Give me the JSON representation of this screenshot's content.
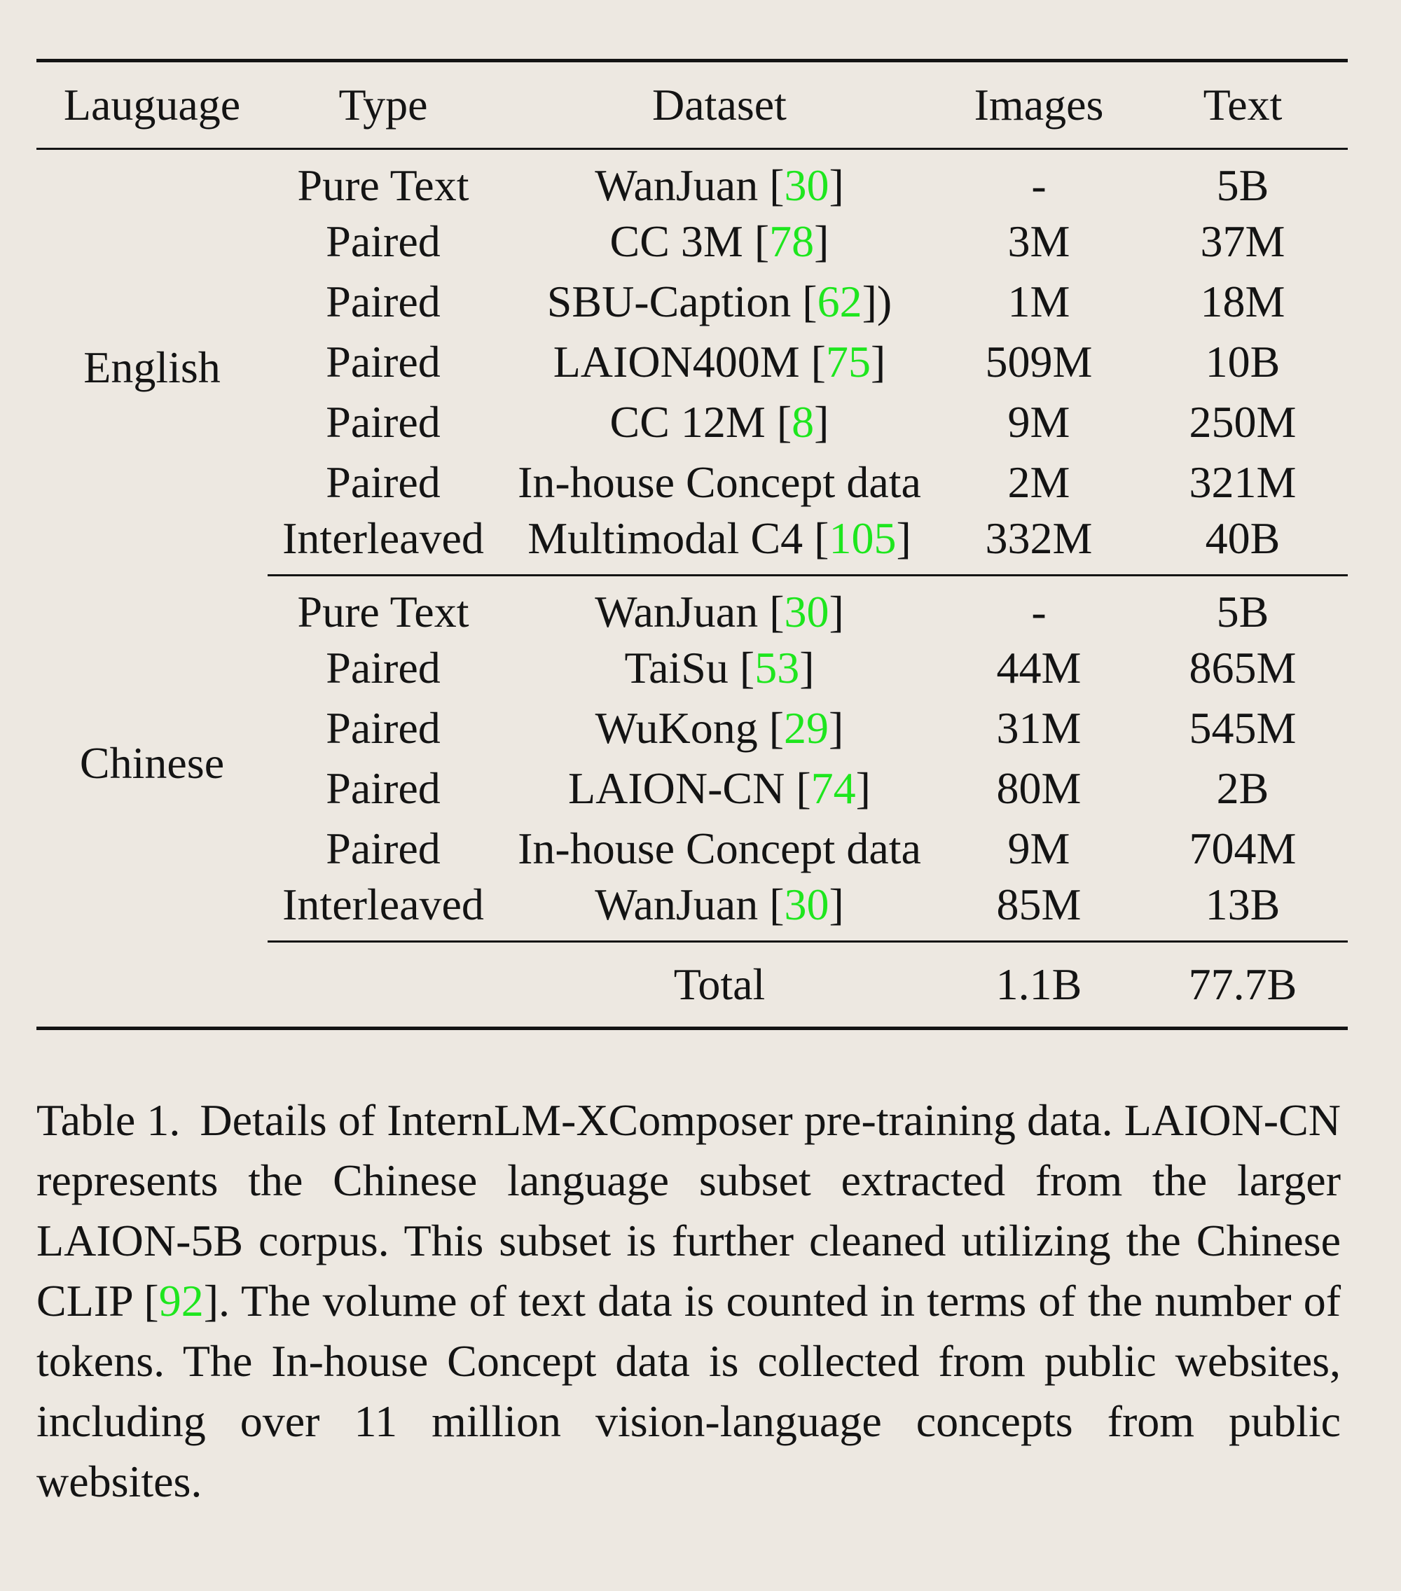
{
  "table": {
    "headers": [
      "Lauguage",
      "Type",
      "Dataset",
      "Images",
      "Text"
    ],
    "groups": [
      {
        "language": "English",
        "rows": [
          {
            "type": "Pure Text",
            "dataset": "WanJuan",
            "cite": "30",
            "suffix": "]",
            "images": "-",
            "text": "5B"
          },
          {
            "type": "Paired",
            "dataset": "CC 3M",
            "cite": "78",
            "suffix": "]",
            "images": "3M",
            "text": "37M"
          },
          {
            "type": "Paired",
            "dataset": "SBU-Caption",
            "cite": "62",
            "suffix": "])",
            "images": "1M",
            "text": "18M"
          },
          {
            "type": "Paired",
            "dataset": "LAION400M",
            "cite": "75",
            "suffix": "]",
            "images": "509M",
            "text": "10B"
          },
          {
            "type": "Paired",
            "dataset": "CC 12M",
            "cite": "8",
            "suffix": "]",
            "images": "9M",
            "text": "250M"
          },
          {
            "type": "Paired",
            "dataset": "In-house Concept data",
            "images": "2M",
            "text": "321M"
          },
          {
            "type": "Interleaved",
            "dataset": "Multimodal C4",
            "cite": "105",
            "suffix": "]",
            "images": "332M",
            "text": "40B"
          }
        ]
      },
      {
        "language": "Chinese",
        "rows": [
          {
            "type": "Pure Text",
            "dataset": "WanJuan",
            "cite": "30",
            "suffix": "]",
            "images": "-",
            "text": "5B"
          },
          {
            "type": "Paired",
            "dataset": "TaiSu",
            "cite": "53",
            "suffix": "]",
            "images": "44M",
            "text": "865M"
          },
          {
            "type": "Paired",
            "dataset": "WuKong",
            "cite": "29",
            "suffix": "]",
            "images": "31M",
            "text": "545M"
          },
          {
            "type": "Paired",
            "dataset": "LAION-CN",
            "cite": "74",
            "suffix": "]",
            "images": "80M",
            "text": "2B"
          },
          {
            "type": "Paired",
            "dataset": "In-house Concept data",
            "images": "9M",
            "text": "704M"
          },
          {
            "type": "Interleaved",
            "dataset": "WanJuan",
            "cite": "30",
            "suffix": "]",
            "images": "85M",
            "text": "13B"
          }
        ]
      }
    ],
    "total": {
      "label": "Total",
      "images": "1.1B",
      "text": "77.7B"
    }
  },
  "caption": {
    "label": "Table 1.",
    "text_before_cite": "Details of InternLM-XComposer pre-training data. LAION-CN represents the Chinese language subset extracted from the larger LAION-5B corpus. This subset is further cleaned utilizing the Chinese CLIP [",
    "cite": "92",
    "text_after_cite": "]. The volume of text data is counted in terms of the number of tokens. The In-house Concept data is collected from public websites, including over 11 million vision-language concepts from public websites."
  },
  "colors": {
    "citation": "#1ee61e",
    "background": "#ede8e1",
    "text": "#141414"
  }
}
